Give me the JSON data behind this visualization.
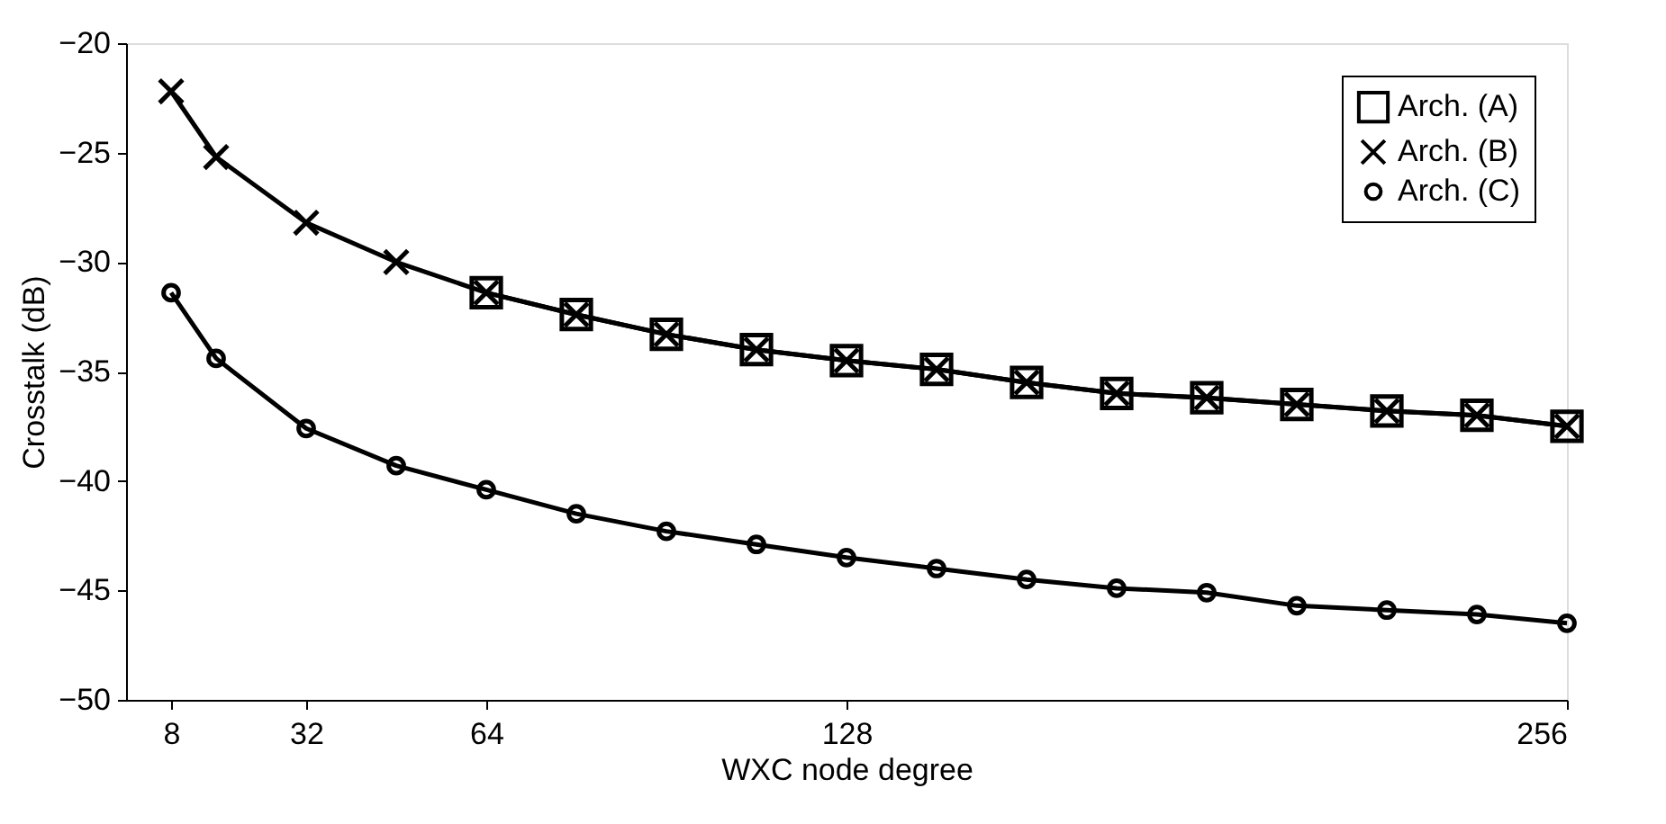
{
  "chart_data": {
    "type": "line",
    "xlabel": "WXC node degree",
    "ylabel": "Crosstalk (dB)",
    "xlim": [
      0,
      256
    ],
    "xticks": [
      8,
      32,
      64,
      128,
      256
    ],
    "ylim": [
      -50,
      -20
    ],
    "yticks": [
      -50,
      -45,
      -40,
      -35,
      -30,
      -25,
      -20
    ],
    "grid": false,
    "legend": "top right",
    "line_style": "solid",
    "series": [
      {
        "name": "Arch. (A)",
        "color": "#000000",
        "marker": "square",
        "x": [
          64,
          80,
          96,
          112,
          128,
          144,
          160,
          176,
          192,
          208,
          224,
          240,
          256
        ],
        "values": [
          -31.4,
          -32.4,
          -33.3,
          -34.0,
          -34.5,
          -34.9,
          -35.5,
          -36.0,
          -36.2,
          -36.5,
          -36.8,
          -37.0,
          -37.5
        ]
      },
      {
        "name": "Arch. (B)",
        "color": "#000000",
        "marker": "cross",
        "x": [
          8,
          16,
          32,
          48,
          64,
          80,
          96,
          112,
          128,
          144,
          160,
          176,
          192,
          208,
          224,
          240,
          256
        ],
        "values": [
          -22.2,
          -25.2,
          -28.2,
          -30.0,
          -31.4,
          -32.4,
          -33.3,
          -34.0,
          -34.5,
          -34.9,
          -35.5,
          -36.0,
          -36.2,
          -36.5,
          -36.8,
          -37.0,
          -37.5
        ]
      },
      {
        "name": "Arch. (C)",
        "color": "#000000",
        "marker": "circle",
        "x": [
          8,
          16,
          32,
          48,
          64,
          80,
          96,
          112,
          128,
          144,
          160,
          176,
          192,
          208,
          224,
          240,
          256
        ],
        "values": [
          -31.4,
          -34.4,
          -37.6,
          -39.3,
          -40.4,
          -41.5,
          -42.3,
          -42.9,
          -43.5,
          -44.0,
          -44.5,
          -44.9,
          -45.1,
          -45.7,
          -45.9,
          -46.1,
          -46.5
        ]
      }
    ]
  }
}
